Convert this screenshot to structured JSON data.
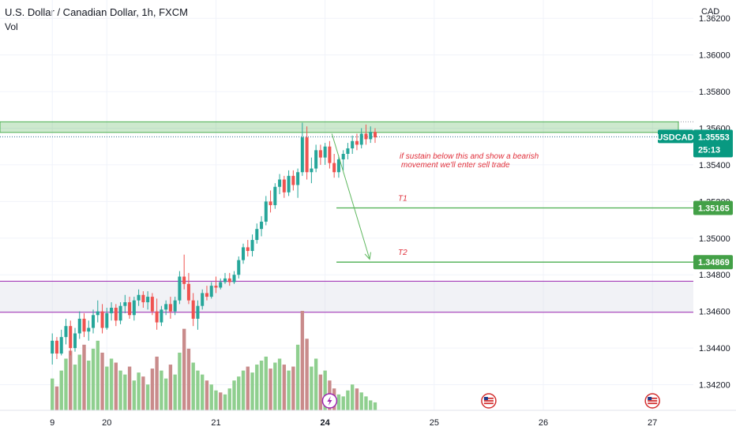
{
  "header": {
    "title": "U.S. Dollar / Canadian Dollar, 1h, FXCM",
    "volume_label": "Vol",
    "currency": "CAD"
  },
  "colors": {
    "up": "#26a69a",
    "down": "#ef5350",
    "vol_up": "#8fcf8f",
    "vol_down": "#c98b8b",
    "zone_green": "#4caf50",
    "zone_purple": "#9c27b0",
    "target_line": "#4caf50",
    "annotation": "#e0303b",
    "grid": "#f0f3fa"
  },
  "chart_data": {
    "type": "candlestick",
    "symbol": "USDCAD",
    "y_ticks": [
      "1.36200",
      "1.36000",
      "1.35800",
      "1.35600",
      "1.35400",
      "1.35200",
      "1.35000",
      "1.34800",
      "1.34600",
      "1.34400",
      "1.34200"
    ],
    "ylim": [
      1.3406,
      1.363
    ],
    "x_ticks": [
      {
        "label": "9",
        "x": 0,
        "bold": false
      },
      {
        "label": "20",
        "x": 12,
        "bold": false
      },
      {
        "label": "21",
        "x": 36,
        "bold": false
      },
      {
        "label": "24",
        "x": 60,
        "bold": true
      },
      {
        "label": "25",
        "x": 84,
        "bold": false
      },
      {
        "label": "26",
        "x": 108,
        "bold": false
      },
      {
        "label": "27",
        "x": 132,
        "bold": false
      }
    ],
    "xlim": [
      -11.5,
      141
    ],
    "candles": [
      [
        1.3437,
        1.3448,
        1.3431,
        1.3444
      ],
      [
        1.3444,
        1.3446,
        1.3434,
        1.3437
      ],
      [
        1.3437,
        1.345,
        1.3436,
        1.3446
      ],
      [
        1.3446,
        1.3456,
        1.3442,
        1.3452
      ],
      [
        1.3452,
        1.3455,
        1.3436,
        1.344
      ],
      [
        1.344,
        1.3451,
        1.3438,
        1.3448
      ],
      [
        1.3448,
        1.346,
        1.3445,
        1.3456
      ],
      [
        1.3456,
        1.3459,
        1.3446,
        1.3449
      ],
      [
        1.3449,
        1.3455,
        1.3444,
        1.3451
      ],
      [
        1.3451,
        1.3461,
        1.3448,
        1.3458
      ],
      [
        1.3458,
        1.3466,
        1.3454,
        1.346
      ],
      [
        1.346,
        1.3464,
        1.3448,
        1.3451
      ],
      [
        1.3451,
        1.3462,
        1.345,
        1.3459
      ],
      [
        1.3459,
        1.3465,
        1.3455,
        1.3462
      ],
      [
        1.3462,
        1.3464,
        1.3452,
        1.3455
      ],
      [
        1.3455,
        1.3465,
        1.3453,
        1.3463
      ],
      [
        1.3463,
        1.3469,
        1.3459,
        1.3465
      ],
      [
        1.3465,
        1.3468,
        1.3456,
        1.3458
      ],
      [
        1.3458,
        1.3468,
        1.3455,
        1.3466
      ],
      [
        1.3466,
        1.3472,
        1.3463,
        1.3469
      ],
      [
        1.3469,
        1.3471,
        1.3462,
        1.3465
      ],
      [
        1.3465,
        1.3471,
        1.3461,
        1.3468
      ],
      [
        1.3468,
        1.347,
        1.3458,
        1.346
      ],
      [
        1.346,
        1.3467,
        1.345,
        1.3454
      ],
      [
        1.3454,
        1.3463,
        1.3452,
        1.3461
      ],
      [
        1.3461,
        1.3466,
        1.3458,
        1.3464
      ],
      [
        1.3464,
        1.3468,
        1.3456,
        1.346
      ],
      [
        1.346,
        1.3468,
        1.3458,
        1.3466
      ],
      [
        1.3466,
        1.3482,
        1.3464,
        1.3479
      ],
      [
        1.3479,
        1.3491,
        1.3472,
        1.3475
      ],
      [
        1.3475,
        1.3481,
        1.3464,
        1.3466
      ],
      [
        1.3466,
        1.347,
        1.3452,
        1.3456
      ],
      [
        1.3456,
        1.3466,
        1.345,
        1.3463
      ],
      [
        1.3463,
        1.3472,
        1.3461,
        1.347
      ],
      [
        1.347,
        1.3474,
        1.3466,
        1.3468
      ],
      [
        1.3468,
        1.3476,
        1.3467,
        1.3474
      ],
      [
        1.3474,
        1.3479,
        1.347,
        1.3473
      ],
      [
        1.3473,
        1.3478,
        1.3472,
        1.3476
      ],
      [
        1.3476,
        1.3481,
        1.3475,
        1.3478
      ],
      [
        1.3478,
        1.3481,
        1.3474,
        1.3476
      ],
      [
        1.3476,
        1.3482,
        1.3475,
        1.348
      ],
      [
        1.348,
        1.349,
        1.3478,
        1.3488
      ],
      [
        1.3488,
        1.3497,
        1.3486,
        1.3495
      ],
      [
        1.3495,
        1.3499,
        1.349,
        1.3493
      ],
      [
        1.3493,
        1.3502,
        1.349,
        1.3499
      ],
      [
        1.3499,
        1.3508,
        1.3497,
        1.3505
      ],
      [
        1.3505,
        1.3512,
        1.3501,
        1.3509
      ],
      [
        1.3509,
        1.3523,
        1.3507,
        1.352
      ],
      [
        1.352,
        1.3526,
        1.3514,
        1.3518
      ],
      [
        1.3518,
        1.353,
        1.3516,
        1.3528
      ],
      [
        1.3528,
        1.3535,
        1.3524,
        1.3532
      ],
      [
        1.3532,
        1.3534,
        1.3522,
        1.3525
      ],
      [
        1.3525,
        1.3537,
        1.3523,
        1.3534
      ],
      [
        1.3534,
        1.3537,
        1.3526,
        1.3529
      ],
      [
        1.3529,
        1.3538,
        1.3522,
        1.3536
      ],
      [
        1.3536,
        1.3563,
        1.3534,
        1.3555
      ],
      [
        1.3555,
        1.3561,
        1.3532,
        1.3536
      ],
      [
        1.3536,
        1.3544,
        1.353,
        1.3538
      ],
      [
        1.3538,
        1.3551,
        1.3536,
        1.3548
      ],
      [
        1.3548,
        1.3551,
        1.354,
        1.3544
      ],
      [
        1.3544,
        1.3552,
        1.354,
        1.355
      ],
      [
        1.355,
        1.3553,
        1.3538,
        1.3541
      ],
      [
        1.3541,
        1.3546,
        1.3533,
        1.3536
      ],
      [
        1.3536,
        1.3545,
        1.3533,
        1.3543
      ],
      [
        1.3543,
        1.3548,
        1.3537,
        1.3546
      ],
      [
        1.3546,
        1.3552,
        1.3543,
        1.3549
      ],
      [
        1.3549,
        1.3556,
        1.3546,
        1.3553
      ],
      [
        1.3553,
        1.3557,
        1.3548,
        1.3551
      ],
      [
        1.3551,
        1.356,
        1.3549,
        1.3557
      ],
      [
        1.3557,
        1.3562,
        1.3551,
        1.3554
      ],
      [
        1.3554,
        1.3561,
        1.3552,
        1.3558
      ],
      [
        1.3558,
        1.356,
        1.3552,
        1.3555
      ]
    ],
    "volumes": [
      [
        0.32,
        1
      ],
      [
        0.24,
        0
      ],
      [
        0.4,
        1
      ],
      [
        0.52,
        1
      ],
      [
        0.6,
        0
      ],
      [
        0.46,
        1
      ],
      [
        0.56,
        1
      ],
      [
        0.66,
        0
      ],
      [
        0.5,
        1
      ],
      [
        0.62,
        1
      ],
      [
        0.7,
        1
      ],
      [
        0.58,
        0
      ],
      [
        0.44,
        1
      ],
      [
        0.52,
        1
      ],
      [
        0.48,
        0
      ],
      [
        0.4,
        1
      ],
      [
        0.36,
        1
      ],
      [
        0.44,
        0
      ],
      [
        0.3,
        1
      ],
      [
        0.38,
        1
      ],
      [
        0.34,
        0
      ],
      [
        0.26,
        1
      ],
      [
        0.42,
        0
      ],
      [
        0.54,
        0
      ],
      [
        0.4,
        1
      ],
      [
        0.32,
        1
      ],
      [
        0.46,
        0
      ],
      [
        0.36,
        1
      ],
      [
        0.58,
        1
      ],
      [
        0.82,
        0
      ],
      [
        0.62,
        0
      ],
      [
        0.48,
        1
      ],
      [
        0.4,
        1
      ],
      [
        0.36,
        1
      ],
      [
        0.3,
        0
      ],
      [
        0.26,
        1
      ],
      [
        0.2,
        1
      ],
      [
        0.18,
        0
      ],
      [
        0.16,
        1
      ],
      [
        0.22,
        1
      ],
      [
        0.3,
        1
      ],
      [
        0.34,
        1
      ],
      [
        0.4,
        1
      ],
      [
        0.44,
        0
      ],
      [
        0.38,
        1
      ],
      [
        0.46,
        1
      ],
      [
        0.5,
        1
      ],
      [
        0.54,
        1
      ],
      [
        0.42,
        0
      ],
      [
        0.48,
        1
      ],
      [
        0.52,
        1
      ],
      [
        0.46,
        0
      ],
      [
        0.4,
        1
      ],
      [
        0.44,
        0
      ],
      [
        0.66,
        1
      ],
      [
        1.0,
        0
      ],
      [
        0.72,
        0
      ],
      [
        0.44,
        1
      ],
      [
        0.52,
        1
      ],
      [
        0.36,
        0
      ],
      [
        0.4,
        1
      ],
      [
        0.3,
        0
      ],
      [
        0.22,
        0
      ],
      [
        0.16,
        1
      ],
      [
        0.14,
        1
      ],
      [
        0.2,
        1
      ],
      [
        0.26,
        1
      ],
      [
        0.22,
        0
      ],
      [
        0.18,
        1
      ],
      [
        0.14,
        1
      ],
      [
        0.1,
        1
      ],
      [
        0.08,
        1
      ]
    ],
    "volume_base_y": 520,
    "volume_max_height": 126,
    "resistance_zone": [
      1.35577,
      1.35635
    ],
    "support_zone": [
      1.34595,
      1.34765
    ],
    "current_price": 1.35553,
    "targets": [
      {
        "name": "T1",
        "price": 1.35165,
        "label": "1.35165",
        "x_start": 62.5
      },
      {
        "name": "T2",
        "price": 1.34869,
        "label": "1.34869",
        "x_start": 62.5
      }
    ],
    "projection_arrow": {
      "from": [
        61.5,
        1.3557
      ],
      "to": [
        69.8,
        1.34885
      ]
    },
    "annotation_text": [
      "if sustain below this and show a bearish",
      "movement we'll enter sell trade"
    ],
    "price_tag": {
      "symbol": "USDCAD",
      "price": "1.35553",
      "countdown": "25:13"
    },
    "event_markers": [
      {
        "type": "lightning",
        "x": 61
      },
      {
        "type": "us-flag",
        "x": 96
      },
      {
        "type": "us-flag",
        "x": 132
      }
    ]
  }
}
